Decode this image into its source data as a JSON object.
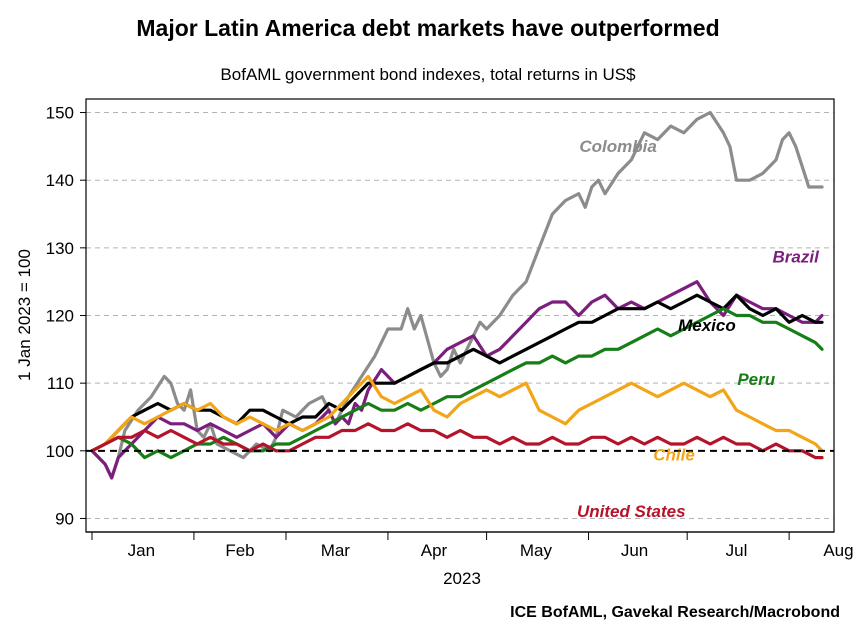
{
  "chart_data": {
    "type": "line",
    "title": "Major Latin America debt markets have outperformed",
    "subtitle": "BofAML government bond indexes, total returns in US$",
    "ylabel": "1 Jan 2023 = 100",
    "xlabel": "2023",
    "source": "ICE BofAML, Gavekal Research/Macrobond",
    "ylim": [
      88,
      152
    ],
    "yticks": [
      90,
      100,
      110,
      120,
      130,
      140,
      150
    ],
    "grid": "horizontal-dashed",
    "reference_line": 100,
    "x_range": [
      0,
      222
    ],
    "months": [
      "Jan",
      "Feb",
      "Mar",
      "Apr",
      "May",
      "Jun",
      "Jul",
      "Aug"
    ],
    "month_positions": [
      15,
      45,
      74,
      104,
      135,
      165,
      196,
      227
    ],
    "month_starts": [
      0,
      31,
      59,
      90,
      120,
      151,
      181,
      212
    ],
    "series": [
      {
        "name": "Colombia",
        "color": "#8c8c8c",
        "x": [
          0,
          4,
          6,
          8,
          10,
          14,
          18,
          22,
          24,
          26,
          28,
          30,
          32,
          34,
          36,
          38,
          42,
          46,
          50,
          54,
          56,
          58,
          62,
          66,
          70,
          74,
          78,
          82,
          86,
          90,
          94,
          96,
          98,
          100,
          104,
          106,
          108,
          110,
          112,
          116,
          118,
          120,
          124,
          128,
          132,
          136,
          140,
          144,
          148,
          150,
          152,
          154,
          156,
          160,
          164,
          168,
          172,
          176,
          180,
          184,
          188,
          192,
          194,
          196,
          200,
          204,
          208,
          210,
          212,
          214,
          216,
          218,
          220,
          222
        ],
        "values": [
          100,
          98,
          96,
          99,
          103,
          106,
          108,
          111,
          110,
          107,
          106,
          109,
          103,
          102,
          104,
          101,
          100,
          99,
          101,
          100,
          102,
          106,
          105,
          107,
          108,
          104,
          108,
          111,
          114,
          118,
          118,
          121,
          118,
          120,
          113,
          111,
          112,
          115,
          113,
          117,
          119,
          118,
          120,
          123,
          125,
          130,
          135,
          137,
          138,
          136,
          139,
          140,
          138,
          141,
          143,
          147,
          146,
          148,
          147,
          149,
          150,
          147,
          145,
          140,
          140,
          141,
          143,
          146,
          147,
          145,
          142,
          139,
          139,
          139
        ]
      },
      {
        "name": "Brazil",
        "color": "#7b1e7e",
        "x": [
          0,
          4,
          6,
          8,
          12,
          16,
          20,
          24,
          28,
          32,
          36,
          40,
          44,
          48,
          52,
          56,
          60,
          64,
          68,
          72,
          74,
          76,
          78,
          80,
          82,
          84,
          88,
          92,
          96,
          100,
          104,
          108,
          112,
          116,
          120,
          124,
          128,
          132,
          136,
          140,
          144,
          148,
          152,
          156,
          160,
          164,
          168,
          172,
          176,
          180,
          184,
          188,
          192,
          196,
          200,
          204,
          208,
          212,
          216,
          220,
          222
        ],
        "values": [
          100,
          98,
          96,
          99,
          101,
          103,
          105,
          104,
          104,
          103,
          104,
          103,
          102,
          103,
          104,
          102,
          104,
          103,
          104,
          106,
          104,
          105,
          104,
          107,
          106,
          109,
          112,
          110,
          111,
          112,
          113,
          115,
          116,
          117,
          114,
          115,
          117,
          119,
          121,
          122,
          122,
          120,
          122,
          123,
          121,
          122,
          121,
          122,
          123,
          124,
          125,
          122,
          120,
          123,
          122,
          121,
          121,
          120,
          119,
          119,
          120
        ]
      },
      {
        "name": "Mexico",
        "color": "#000000",
        "x": [
          0,
          4,
          8,
          12,
          16,
          20,
          24,
          28,
          32,
          36,
          40,
          44,
          48,
          52,
          56,
          60,
          64,
          68,
          72,
          76,
          80,
          84,
          88,
          92,
          96,
          100,
          104,
          108,
          112,
          116,
          120,
          124,
          128,
          132,
          136,
          140,
          144,
          148,
          152,
          156,
          160,
          164,
          168,
          172,
          176,
          180,
          184,
          188,
          192,
          196,
          200,
          204,
          208,
          212,
          216,
          220,
          222
        ],
        "values": [
          100,
          101,
          103,
          105,
          106,
          107,
          106,
          107,
          106,
          106,
          105,
          104,
          106,
          106,
          105,
          104,
          105,
          105,
          107,
          106,
          108,
          110,
          110,
          110,
          111,
          112,
          113,
          113,
          114,
          115,
          114,
          113,
          114,
          115,
          116,
          117,
          118,
          119,
          119,
          120,
          121,
          121,
          121,
          122,
          121,
          122,
          123,
          122,
          121,
          123,
          121,
          120,
          121,
          119,
          120,
          119,
          119
        ]
      },
      {
        "name": "Peru",
        "color": "#177e17",
        "x": [
          0,
          4,
          8,
          12,
          16,
          20,
          24,
          28,
          32,
          36,
          40,
          44,
          48,
          52,
          56,
          60,
          64,
          68,
          72,
          76,
          80,
          84,
          88,
          92,
          96,
          100,
          104,
          108,
          112,
          116,
          120,
          124,
          128,
          132,
          136,
          140,
          144,
          148,
          152,
          156,
          160,
          164,
          168,
          172,
          176,
          180,
          184,
          188,
          192,
          196,
          200,
          204,
          208,
          212,
          216,
          220,
          222
        ],
        "values": [
          100,
          101,
          102,
          101,
          99,
          100,
          99,
          100,
          101,
          101,
          102,
          101,
          100,
          100,
          101,
          101,
          102,
          103,
          104,
          105,
          106,
          107,
          106,
          106,
          107,
          106,
          107,
          108,
          108,
          109,
          110,
          111,
          112,
          113,
          113,
          114,
          113,
          114,
          114,
          115,
          115,
          116,
          117,
          118,
          117,
          118,
          119,
          120,
          121,
          120,
          120,
          119,
          119,
          118,
          117,
          116,
          115
        ]
      },
      {
        "name": "Chile",
        "color": "#f2a516",
        "x": [
          0,
          4,
          8,
          12,
          16,
          20,
          24,
          28,
          32,
          36,
          40,
          44,
          48,
          52,
          56,
          60,
          64,
          68,
          72,
          76,
          80,
          84,
          88,
          92,
          96,
          100,
          104,
          108,
          112,
          116,
          120,
          124,
          128,
          132,
          136,
          140,
          144,
          148,
          152,
          156,
          160,
          164,
          168,
          172,
          176,
          180,
          184,
          188,
          192,
          196,
          200,
          204,
          208,
          212,
          216,
          220,
          222
        ],
        "values": [
          100,
          101,
          103,
          105,
          104,
          105,
          106,
          107,
          106,
          107,
          105,
          104,
          105,
          104,
          103,
          104,
          103,
          104,
          105,
          107,
          109,
          111,
          108,
          107,
          108,
          109,
          106,
          105,
          107,
          108,
          109,
          108,
          109,
          110,
          106,
          105,
          104,
          106,
          107,
          108,
          109,
          110,
          109,
          108,
          109,
          110,
          109,
          108,
          109,
          106,
          105,
          104,
          103,
          103,
          102,
          101,
          100
        ]
      },
      {
        "name": "United States",
        "color": "#b5132a",
        "x": [
          0,
          4,
          8,
          12,
          16,
          20,
          24,
          28,
          32,
          36,
          40,
          44,
          48,
          52,
          56,
          60,
          64,
          68,
          72,
          76,
          80,
          84,
          88,
          92,
          96,
          100,
          104,
          108,
          112,
          116,
          120,
          124,
          128,
          132,
          136,
          140,
          144,
          148,
          152,
          156,
          160,
          164,
          168,
          172,
          176,
          180,
          184,
          188,
          192,
          196,
          200,
          204,
          208,
          212,
          216,
          220,
          222
        ],
        "values": [
          100,
          101,
          102,
          102,
          103,
          102,
          103,
          102,
          101,
          102,
          101,
          101,
          100,
          101,
          100,
          100,
          101,
          102,
          102,
          103,
          103,
          104,
          103,
          103,
          104,
          103,
          103,
          102,
          103,
          102,
          102,
          101,
          102,
          101,
          101,
          102,
          101,
          101,
          102,
          102,
          101,
          102,
          101,
          102,
          101,
          101,
          102,
          101,
          102,
          101,
          101,
          100,
          101,
          100,
          100,
          99,
          99
        ]
      }
    ],
    "labels": [
      {
        "series": "Colombia",
        "text": "Colombia",
        "at_x": 160,
        "at_y": 144.2
      },
      {
        "series": "Brazil",
        "text": "Brazil",
        "at_x": 214,
        "at_y": 127.8
      },
      {
        "series": "Mexico",
        "text": "Mexico",
        "at_x": 187,
        "at_y": 117.7
      },
      {
        "series": "Peru",
        "text": "Peru",
        "at_x": 202,
        "at_y": 109.7
      },
      {
        "series": "Chile",
        "text": "Chile",
        "at_x": 177,
        "at_y": 98.6
      },
      {
        "series": "United States",
        "text": "United States",
        "at_x": 164,
        "at_y": 90.2
      }
    ]
  }
}
